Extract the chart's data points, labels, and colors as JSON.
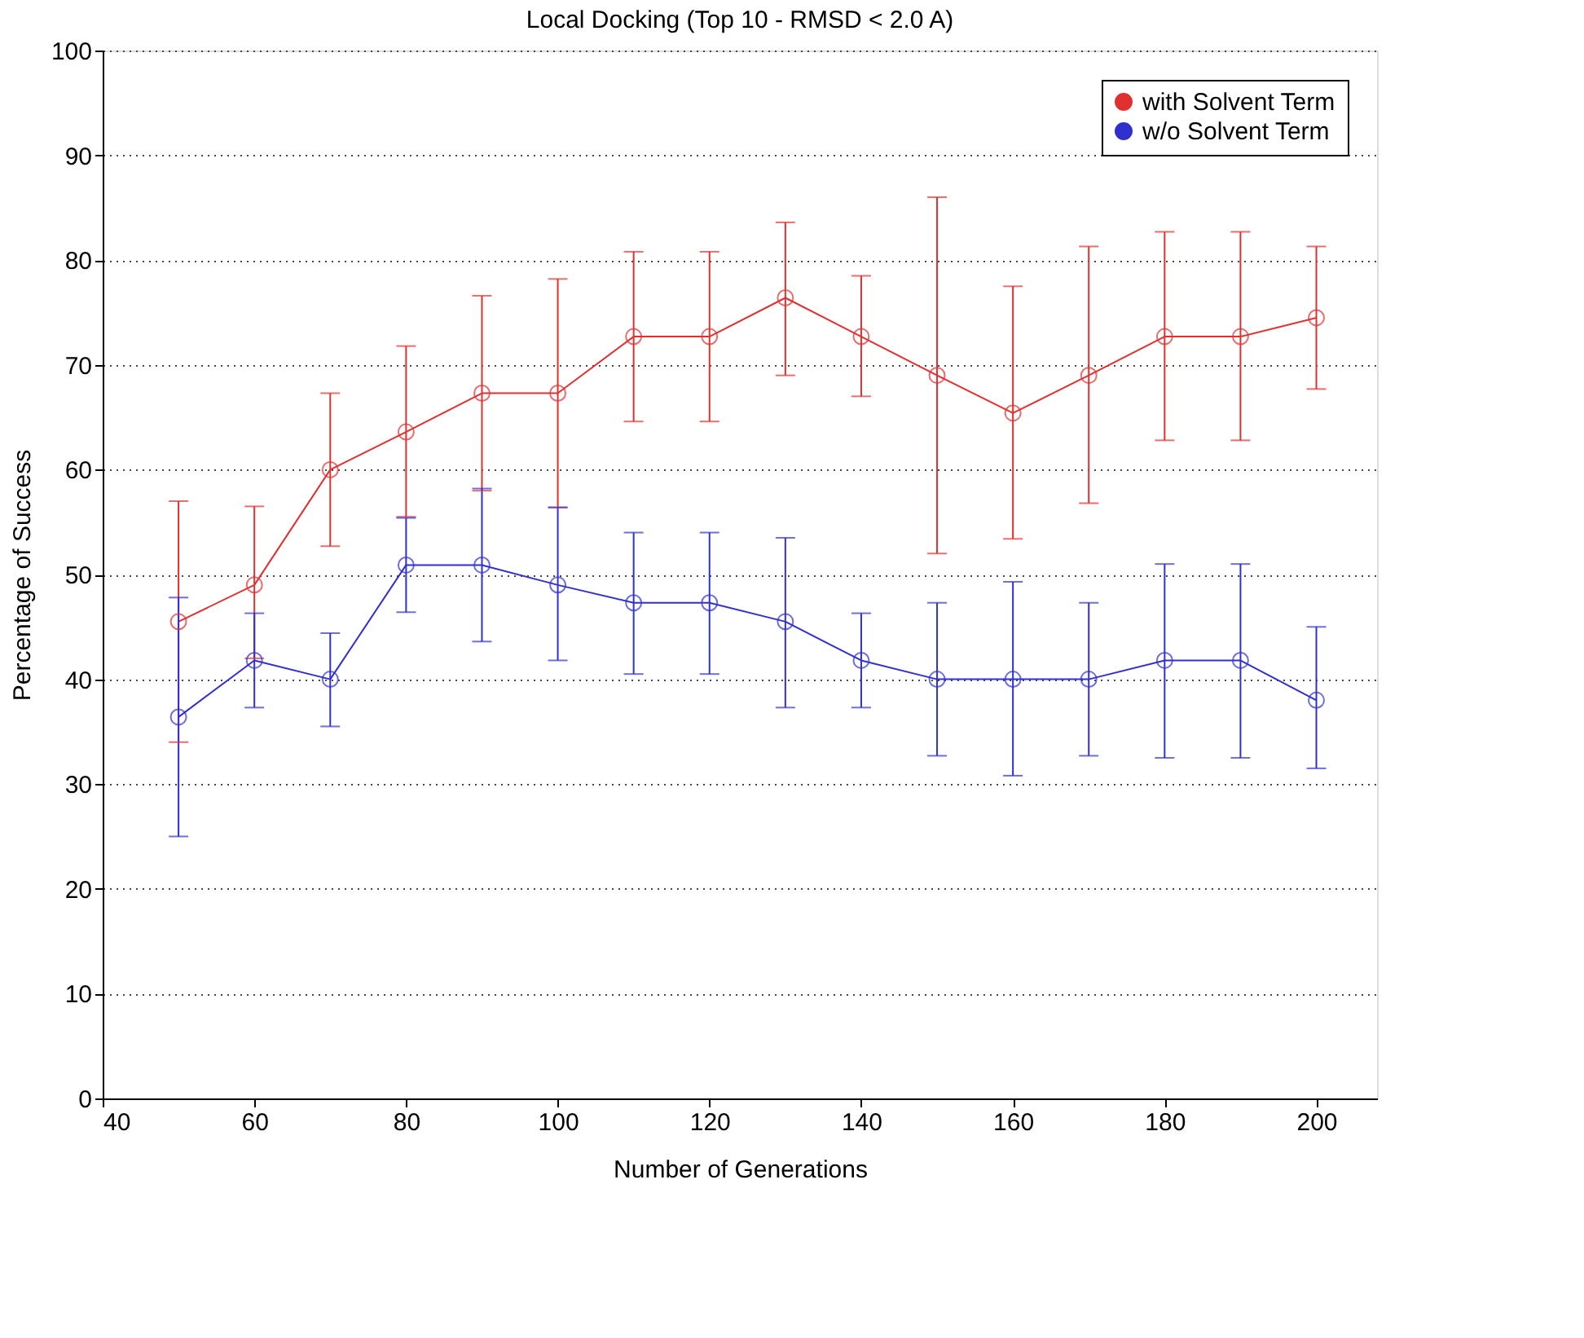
{
  "chart_data": {
    "type": "line",
    "title": "Local Docking (Top 10 - RMSD < 2.0 A)",
    "xlabel": "Number of Generations",
    "ylabel": "Percentage of Success",
    "x": [
      50,
      60,
      70,
      80,
      90,
      100,
      110,
      120,
      130,
      140,
      150,
      160,
      170,
      180,
      190,
      200
    ],
    "series": [
      {
        "name": "with Solvent Term",
        "color": "#e03030",
        "values": [
          45.5,
          49,
          60,
          63.6,
          67.3,
          67.3,
          72.7,
          72.7,
          76.4,
          72.7,
          69,
          65.4,
          69,
          72.7,
          72.7,
          74.5
        ],
        "errors": [
          [
            34,
            57
          ],
          [
            42,
            56.5
          ],
          [
            52.7,
            67.3
          ],
          [
            55.5,
            71.8
          ],
          [
            58,
            76.6
          ],
          [
            56.4,
            78.2
          ],
          [
            64.6,
            80.8
          ],
          [
            64.6,
            80.8
          ],
          [
            69,
            83.6
          ],
          [
            67,
            78.5
          ],
          [
            52,
            86
          ],
          [
            53.4,
            77.5
          ],
          [
            56.8,
            81.3
          ],
          [
            62.8,
            82.7
          ],
          [
            62.8,
            82.7
          ],
          [
            67.7,
            81.3
          ]
        ]
      },
      {
        "name": "w/o  Solvent Term",
        "color": "#3030d0",
        "values": [
          36.4,
          41.8,
          40,
          50.9,
          50.9,
          49,
          47.3,
          47.3,
          45.5,
          41.8,
          40,
          40,
          40,
          41.8,
          41.8,
          38
        ],
        "errors": [
          [
            25,
            47.8
          ],
          [
            37.3,
            46.3
          ],
          [
            35.5,
            44.4
          ],
          [
            46.4,
            55.4
          ],
          [
            43.6,
            58.2
          ],
          [
            41.8,
            56.4
          ],
          [
            40.5,
            54
          ],
          [
            40.5,
            54
          ],
          [
            37.3,
            53.5
          ],
          [
            37.3,
            46.3
          ],
          [
            32.7,
            47.3
          ],
          [
            30.8,
            49.3
          ],
          [
            32.7,
            47.3
          ],
          [
            32.5,
            51
          ],
          [
            32.5,
            51
          ],
          [
            31.5,
            45
          ]
        ]
      }
    ],
    "xlim": [
      40,
      208
    ],
    "xticks": [
      40,
      60,
      80,
      100,
      120,
      140,
      160,
      180,
      200
    ],
    "ylim": [
      0,
      100
    ],
    "yticks": [
      0,
      10,
      20,
      30,
      40,
      50,
      60,
      70,
      80,
      90,
      100
    ],
    "grid": "y",
    "legend": "top right",
    "marker": "circle",
    "line_style": "solid"
  }
}
